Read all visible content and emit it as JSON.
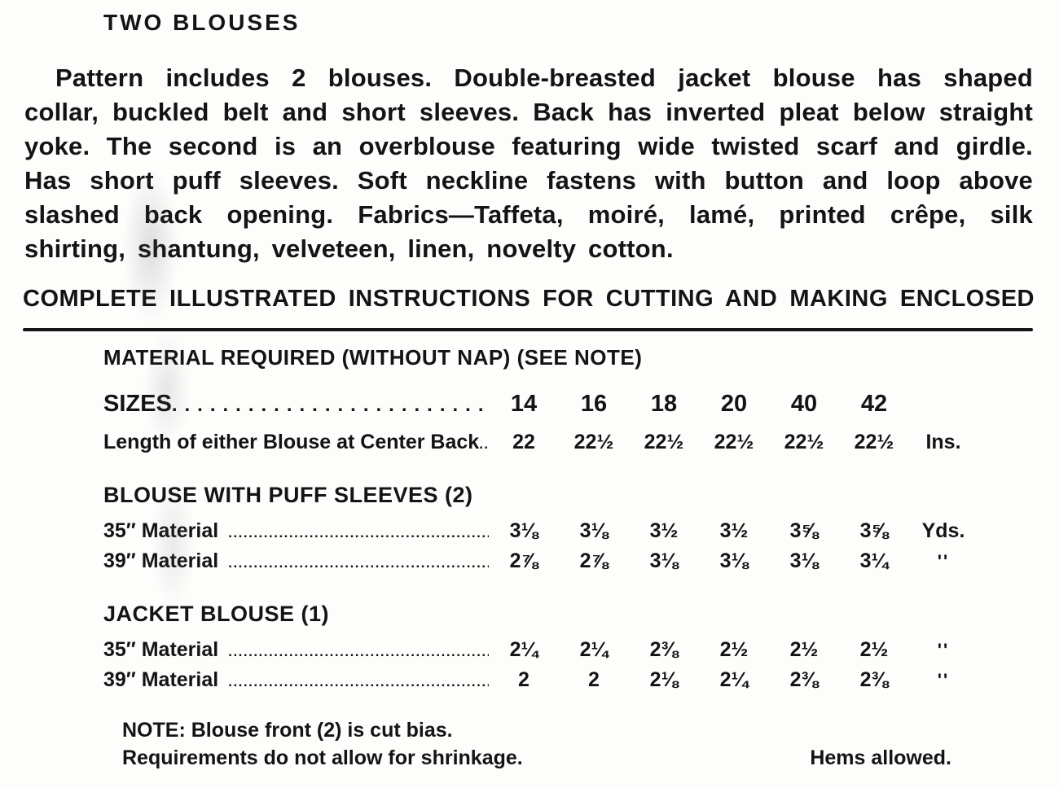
{
  "page": {
    "title": "TWO BLOUSES",
    "description": "Pattern includes 2 blouses. Double-breasted jacket blouse has shaped collar, buckled belt and short sleeves. Back has inverted pleat below straight yoke. The second is an overblouse featuring wide twisted scarf and girdle. Has short puff sleeves. Soft neckline fastens with button and loop above slashed back opening. Fabrics—Taffeta, moiré, lamé, printed crêpe, silk shirting, shantung, velveteen, linen, novelty cotton.",
    "banner": "COMPLETE ILLUSTRATED INSTRUCTIONS FOR CUTTING AND MAKING ENCLOSED"
  },
  "table": {
    "heading": "MATERIAL REQUIRED (WITHOUT NAP) (SEE NOTE)",
    "sizes_row": {
      "label": "SIZES",
      "values": [
        "14",
        "16",
        "18",
        "20",
        "40",
        "42"
      ],
      "unit": ""
    },
    "length_row": {
      "label": "Length of either Blouse at Center Back",
      "values": [
        "22",
        "22½",
        "22½",
        "22½",
        "22½",
        "22½"
      ],
      "unit": "Ins."
    },
    "sections": [
      {
        "heading": "BLOUSE WITH PUFF SLEEVES (2)",
        "rows": [
          {
            "label": "35″ Material",
            "values": [
              "3⅛",
              "3⅛",
              "3½",
              "3½",
              "3⅝",
              "3⅝"
            ],
            "unit": "Yds."
          },
          {
            "label": "39″ Material",
            "values": [
              "2⅞",
              "2⅞",
              "3⅛",
              "3⅛",
              "3⅛",
              "3¼"
            ],
            "unit": "''"
          }
        ]
      },
      {
        "heading": "JACKET BLOUSE (1)",
        "rows": [
          {
            "label": "35″ Material",
            "values": [
              "2¼",
              "2¼",
              "2⅜",
              "2½",
              "2½",
              "2½"
            ],
            "unit": "''"
          },
          {
            "label": "39″ Material",
            "values": [
              "2",
              "2",
              "2⅛",
              "2¼",
              "2⅜",
              "2⅜"
            ],
            "unit": "''"
          }
        ]
      }
    ]
  },
  "notes": {
    "note1": "NOTE: Blouse front (2) is cut bias.",
    "note2": "Requirements do not allow for shrinkage.",
    "note3": "Hems allowed."
  }
}
